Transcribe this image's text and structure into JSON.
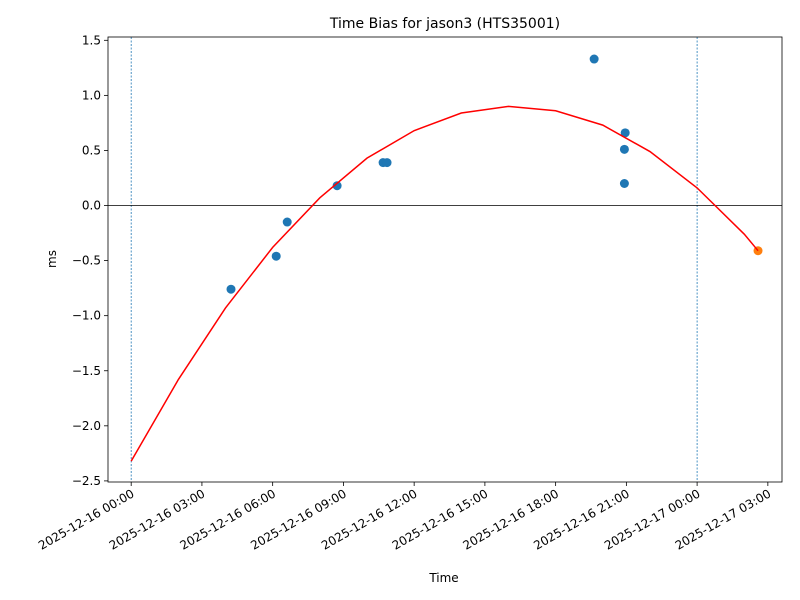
{
  "chart_data": {
    "type": "scatter",
    "title": "Time Bias for jason3 (HTS35001)",
    "xlabel": "Time",
    "ylabel": "ms",
    "xlim": [
      "2025-12-15 23:01",
      "2025-12-17 03:36"
    ],
    "xticks": [
      "2025-12-16 00:00",
      "2025-12-16 03:00",
      "2025-12-16 06:00",
      "2025-12-16 09:00",
      "2025-12-16 12:00",
      "2025-12-16 15:00",
      "2025-12-16 18:00",
      "2025-12-16 21:00",
      "2025-12-17 00:00",
      "2025-12-17 03:00"
    ],
    "ylim": [
      -2.51,
      1.53
    ],
    "yticks": [
      {
        "value": -2.5,
        "label": "−2.5"
      },
      {
        "value": -2.0,
        "label": "−2.0"
      },
      {
        "value": -1.5,
        "label": "−1.5"
      },
      {
        "value": -1.0,
        "label": "−1.0"
      },
      {
        "value": -0.5,
        "label": "−0.5"
      },
      {
        "value": 0.0,
        "label": "0.0"
      },
      0.5,
      {
        "value": 1.0,
        "label": "1.0"
      },
      1.5
    ],
    "vlines": [
      "2025-12-16 00:00",
      "2025-12-17 00:00"
    ],
    "vline_color": "#1f77b4",
    "hline": 0,
    "hline_color": "#000000",
    "series": [
      {
        "type": "scatter",
        "color": "#1f77b4",
        "x": [
          "2025-12-16 04:14",
          "2025-12-16 06:09",
          "2025-12-16 06:37",
          "2025-12-16 08:44",
          "2025-12-16 10:41",
          "2025-12-16 10:51",
          "2025-12-16 19:38",
          "2025-12-16 20:57",
          "2025-12-16 20:55",
          "2025-12-16 20:55"
        ],
        "values": [
          -0.76,
          -0.46,
          -0.15,
          0.18,
          0.39,
          0.39,
          1.33,
          0.66,
          0.51,
          0.2
        ]
      },
      {
        "type": "scatter",
        "color": "#ff7f0e",
        "x": [
          "2025-12-17 02:35"
        ],
        "values": [
          -0.41
        ]
      },
      {
        "type": "line",
        "color": "#ff0000",
        "x": [
          "2025-12-16 00:00",
          "2025-12-16 02:00",
          "2025-12-16 04:00",
          "2025-12-16 06:00",
          "2025-12-16 08:00",
          "2025-12-16 10:00",
          "2025-12-16 12:00",
          "2025-12-16 14:00",
          "2025-12-16 16:00",
          "2025-12-16 18:00",
          "2025-12-16 20:00",
          "2025-12-16 22:00",
          "2025-12-17 00:00",
          "2025-12-17 02:00",
          "2025-12-17 02:35"
        ],
        "values": [
          -2.32,
          -1.58,
          -0.93,
          -0.38,
          0.07,
          0.43,
          0.68,
          0.84,
          0.9,
          0.86,
          0.73,
          0.49,
          0.16,
          -0.26,
          -0.41
        ]
      }
    ]
  }
}
